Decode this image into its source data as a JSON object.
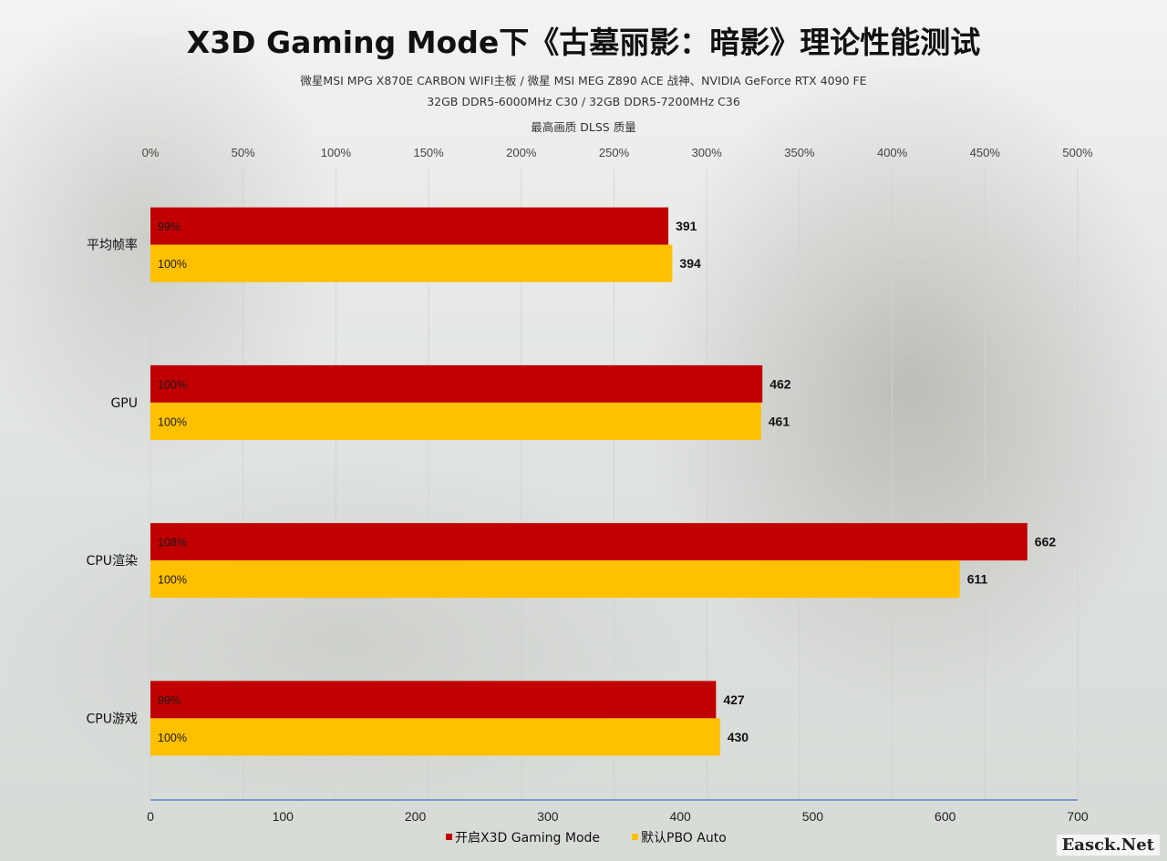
{
  "header": {
    "title": "X3D Gaming Mode下《古墓丽影：暗影》理论性能测试",
    "subtitle_lines": [
      "微星MSI MPG X870E CARBON WIFI主板 / 微星 MSI MEG Z890 ACE 战神、NVIDIA GeForce RTX 4090 FE",
      "32GB DDR5-6000MHz  C30 / 32GB DDR5-7200MHz  C36",
      "最高画质 DLSS 质量"
    ]
  },
  "watermark": "Easck.Net",
  "colors": {
    "series_x3d": "#c00000",
    "series_pbo": "#ffc000",
    "axis_line": "#4472c4",
    "grid": "#cfd3cf"
  },
  "chart_data": {
    "type": "bar",
    "orientation": "horizontal",
    "categories": [
      "平均帧率",
      "GPU",
      "CPU渲染",
      "CPU游戏"
    ],
    "series": [
      {
        "name": "开启X3D Gaming  Mode",
        "values": [
          391,
          462,
          662,
          427
        ],
        "percent_labels": [
          "99%",
          "100%",
          "108%",
          "99%"
        ]
      },
      {
        "name": "默认PBO Auto",
        "values": [
          394,
          461,
          611,
          430
        ],
        "percent_labels": [
          "100%",
          "100%",
          "100%",
          "100%"
        ]
      }
    ],
    "x_axis_bottom": {
      "range": [
        0,
        700
      ],
      "ticks": [
        "0",
        "100",
        "200",
        "300",
        "400",
        "500",
        "600",
        "700"
      ]
    },
    "x_axis_top": {
      "range": [
        0,
        500
      ],
      "ticks": [
        "0%",
        "50%",
        "100%",
        "150%",
        "200%",
        "250%",
        "300%",
        "350%",
        "400%",
        "450%",
        "500%"
      ]
    },
    "legend_position": "bottom",
    "grid": true
  }
}
